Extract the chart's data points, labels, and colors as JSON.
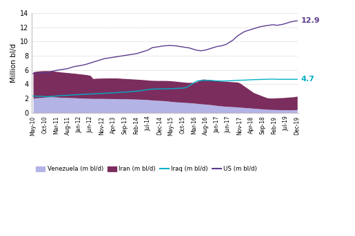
{
  "ylabel": "Million bl/d",
  "ylim": [
    0,
    14
  ],
  "yticks": [
    0,
    2,
    4,
    6,
    8,
    10,
    12,
    14
  ],
  "background_color": "#ffffff",
  "grid_color": "#aaaaaa",
  "venezuela_color": "#b3b3e6",
  "iran_color": "#7b2d5e",
  "iraq_color": "#00b0c8",
  "us_color": "#5a3a8c",
  "annotation_us": "12.9",
  "annotation_iraq": "4.7",
  "legend_labels": [
    "Venezuela (m bl/d)",
    "Iran (m bl/d)",
    "Iraq (m bl/d)",
    "US (m bl/d)"
  ],
  "x_tick_positions": [
    0,
    5,
    10,
    15,
    20,
    25,
    30,
    35,
    40,
    45,
    50,
    55,
    60,
    65,
    70,
    75,
    80,
    85,
    90,
    95,
    100,
    105,
    110,
    115
  ],
  "x_tick_labels": [
    "May-10",
    "Oct-10",
    "Mar-11",
    "Aug-11",
    "Jan-12",
    "Jun-12",
    "Nov-12",
    "Apr-13",
    "Sep-13",
    "Feb-14",
    "Jul-14",
    "Dec-14",
    "May-15",
    "Oct-15",
    "Mar-16",
    "Aug-16",
    "Jan-17",
    "Jun-17",
    "Nov-17",
    "Apr-18",
    "Sep-18",
    "Feb-19",
    "Jul-19",
    "Dec-19"
  ],
  "venezuela": [
    2.05,
    2.08,
    2.1,
    2.12,
    2.15,
    2.18,
    2.2,
    2.22,
    2.25,
    2.22,
    2.2,
    2.18,
    2.16,
    2.15,
    2.14,
    2.13,
    2.12,
    2.1,
    2.1,
    2.08,
    2.06,
    2.05,
    2.04,
    2.03,
    2.02,
    2.01,
    2.0,
    2.0,
    2.0,
    2.0,
    2.0,
    1.99,
    1.99,
    1.98,
    1.98,
    1.97,
    1.97,
    1.96,
    1.96,
    1.95,
    1.95,
    1.94,
    1.93,
    1.92,
    1.91,
    1.9,
    1.89,
    1.88,
    1.87,
    1.85,
    1.83,
    1.8,
    1.78,
    1.76,
    1.74,
    1.72,
    1.7,
    1.68,
    1.65,
    1.62,
    1.58,
    1.55,
    1.52,
    1.5,
    1.48,
    1.46,
    1.44,
    1.42,
    1.4,
    1.38,
    1.35,
    1.32,
    1.28,
    1.25,
    1.22,
    1.2,
    1.17,
    1.14,
    1.1,
    1.06,
    1.02,
    0.98,
    0.95,
    0.92,
    0.9,
    0.88,
    0.86,
    0.84,
    0.82,
    0.8,
    0.78,
    0.75,
    0.72,
    0.7,
    0.68,
    0.65,
    0.62,
    0.6,
    0.57,
    0.55,
    0.52,
    0.5,
    0.48,
    0.46,
    0.45,
    0.44,
    0.43,
    0.42,
    0.41,
    0.4,
    0.4,
    0.4,
    0.4,
    0.4,
    0.42,
    0.44
  ],
  "iran": [
    3.7,
    3.72,
    3.74,
    3.75,
    3.74,
    3.72,
    3.7,
    3.68,
    3.65,
    3.62,
    3.6,
    3.58,
    3.56,
    3.54,
    3.52,
    3.5,
    3.48,
    3.46,
    3.44,
    3.42,
    3.4,
    3.38,
    3.35,
    3.32,
    3.28,
    3.2,
    2.8,
    2.82,
    2.84,
    2.85,
    2.86,
    2.87,
    2.88,
    2.89,
    2.9,
    2.9,
    2.9,
    2.9,
    2.88,
    2.86,
    2.85,
    2.84,
    2.83,
    2.82,
    2.81,
    2.8,
    2.79,
    2.78,
    2.77,
    2.76,
    2.75,
    2.75,
    2.76,
    2.77,
    2.78,
    2.8,
    2.82,
    2.84,
    2.86,
    2.88,
    2.9,
    2.9,
    2.9,
    2.88,
    2.87,
    2.86,
    2.85,
    2.84,
    2.85,
    2.88,
    2.9,
    3.0,
    3.2,
    3.4,
    3.5,
    3.5,
    3.5,
    3.5,
    3.5,
    3.5,
    3.5,
    3.5,
    3.5,
    3.5,
    3.5,
    3.5,
    3.5,
    3.5,
    3.5,
    3.5,
    3.4,
    3.2,
    3.0,
    2.8,
    2.6,
    2.4,
    2.2,
    2.1,
    2.0,
    1.9,
    1.8,
    1.7,
    1.6,
    1.6,
    1.6,
    1.62,
    1.65,
    1.68,
    1.7,
    1.72,
    1.75,
    1.78,
    1.8,
    1.82,
    1.85,
    1.88
  ],
  "iraq": [
    2.35,
    2.33,
    2.32,
    2.31,
    2.3,
    2.28,
    2.25,
    2.28,
    2.3,
    2.32,
    2.35,
    2.38,
    2.4,
    2.42,
    2.44,
    2.45,
    2.47,
    2.5,
    2.52,
    2.54,
    2.56,
    2.57,
    2.58,
    2.6,
    2.62,
    2.64,
    2.65,
    2.67,
    2.68,
    2.7,
    2.72,
    2.74,
    2.75,
    2.77,
    2.78,
    2.8,
    2.82,
    2.85,
    2.87,
    2.89,
    2.9,
    2.92,
    2.94,
    2.97,
    3.0,
    3.03,
    3.06,
    3.1,
    3.15,
    3.2,
    3.25,
    3.3,
    3.32,
    3.34,
    3.35,
    3.35,
    3.35,
    3.35,
    3.36,
    3.37,
    3.38,
    3.4,
    3.42,
    3.44,
    3.45,
    3.45,
    3.5,
    3.6,
    3.8,
    4.0,
    4.2,
    4.4,
    4.5,
    4.52,
    4.54,
    4.55,
    4.55,
    4.55,
    4.52,
    4.5,
    4.48,
    4.46,
    4.45,
    4.46,
    4.47,
    4.48,
    4.5,
    4.52,
    4.55,
    4.56,
    4.57,
    4.58,
    4.58,
    4.6,
    4.62,
    4.64,
    4.65,
    4.66,
    4.67,
    4.68,
    4.69,
    4.7,
    4.71,
    4.72,
    4.72,
    4.72,
    4.71,
    4.7,
    4.7,
    4.7,
    4.7,
    4.7,
    4.7,
    4.7,
    4.7,
    4.7
  ],
  "us": [
    5.5,
    5.52,
    5.54,
    5.56,
    5.58,
    5.62,
    5.66,
    5.72,
    5.8,
    5.88,
    5.95,
    6.0,
    6.05,
    6.1,
    6.15,
    6.2,
    6.3,
    6.4,
    6.5,
    6.55,
    6.6,
    6.65,
    6.72,
    6.8,
    6.9,
    7.0,
    7.1,
    7.2,
    7.3,
    7.4,
    7.5,
    7.6,
    7.65,
    7.7,
    7.75,
    7.8,
    7.85,
    7.9,
    7.95,
    8.0,
    8.05,
    8.1,
    8.15,
    8.2,
    8.25,
    8.3,
    8.4,
    8.5,
    8.6,
    8.7,
    8.8,
    9.0,
    9.15,
    9.2,
    9.25,
    9.3,
    9.35,
    9.4,
    9.42,
    9.44,
    9.44,
    9.42,
    9.4,
    9.35,
    9.3,
    9.25,
    9.2,
    9.15,
    9.1,
    9.0,
    8.9,
    8.8,
    8.75,
    8.7,
    8.75,
    8.8,
    8.9,
    9.0,
    9.1,
    9.2,
    9.3,
    9.35,
    9.4,
    9.5,
    9.6,
    9.8,
    10.0,
    10.2,
    10.5,
    10.8,
    11.0,
    11.2,
    11.4,
    11.5,
    11.6,
    11.7,
    11.8,
    11.9,
    12.0,
    12.1,
    12.15,
    12.2,
    12.25,
    12.3,
    12.35,
    12.35,
    12.28,
    12.32,
    12.38,
    12.45,
    12.55,
    12.65,
    12.75,
    12.82,
    12.88,
    12.9
  ]
}
